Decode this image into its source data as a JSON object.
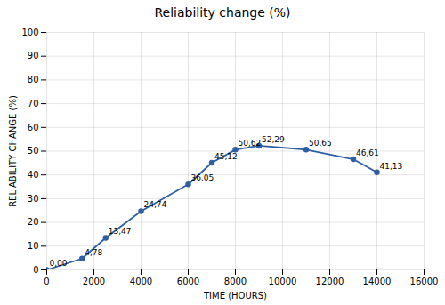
{
  "chart_data": {
    "type": "line",
    "title": "Reliability change (%)",
    "xlabel": "TIME (HOURS)",
    "ylabel": "RELIABILITY CHANGE (%)",
    "x": [
      0,
      1500,
      2500,
      4000,
      6000,
      7000,
      8000,
      9000,
      11000,
      13000,
      14000
    ],
    "values": [
      0.0,
      4.78,
      13.47,
      24.74,
      36.05,
      45.12,
      50.62,
      52.29,
      50.65,
      46.61,
      41.13
    ],
    "value_labels": [
      "0,00",
      "4,78",
      "13,47",
      "24,74",
      "36,05",
      "45,12",
      "50,62",
      "52,29",
      "50,65",
      "46,61",
      "41,13"
    ],
    "data_labels": true,
    "color": "#2E5FA3",
    "marker": "circle",
    "xlim": [
      0,
      16000
    ],
    "ylim": [
      0,
      100
    ],
    "xticks": [
      0,
      2000,
      4000,
      6000,
      8000,
      10000,
      12000,
      14000,
      16000
    ],
    "yticks": [
      0,
      10,
      20,
      30,
      40,
      50,
      60,
      70,
      80,
      90,
      100
    ],
    "grid": true
  }
}
